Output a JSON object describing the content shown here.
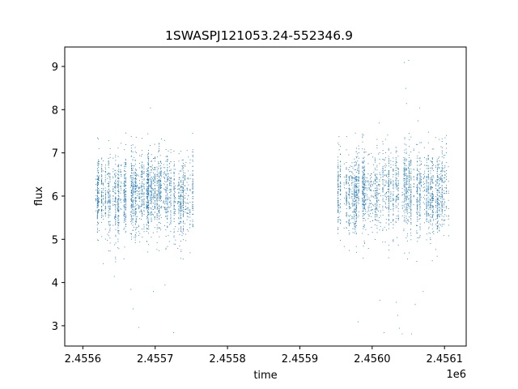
{
  "chart_data": {
    "type": "scatter",
    "title": "1SWASPJ121053.24-552346.9",
    "xlabel": "time",
    "ylabel": "flux",
    "x_offset_label": "1e6",
    "xlim": [
      2455575,
      2456130
    ],
    "ylim": [
      2.53,
      9.45
    ],
    "x_ticks": [
      2455600,
      2455700,
      2455800,
      2455900,
      2456000,
      2456100
    ],
    "x_tick_labels": [
      "2.4556",
      "2.4557",
      "2.4558",
      "2.4559",
      "2.4560",
      "2.4561"
    ],
    "y_ticks": [
      3,
      4,
      5,
      6,
      7,
      8,
      9
    ],
    "y_tick_labels": [
      "3",
      "4",
      "5",
      "6",
      "7",
      "8",
      "9"
    ],
    "grid": false,
    "legend": "none",
    "marker_color": "#1f77b4",
    "series": [
      {
        "segments": [
          {
            "x_start": 2455614,
            "x_end": 2455754,
            "center": 6.05,
            "spread": 0.75
          },
          {
            "x_start": 2455952,
            "x_end": 2456108,
            "center": 6.1,
            "spread": 0.75
          }
        ],
        "outliers": [
          {
            "x": 2455669,
            "y": 3.4
          },
          {
            "x": 2455677,
            "y": 2.97
          },
          {
            "x": 2455666,
            "y": 3.85
          },
          {
            "x": 2455697,
            "y": 3.8
          },
          {
            "x": 2455693,
            "y": 8.05
          },
          {
            "x": 2455643,
            "y": 4.15
          },
          {
            "x": 2455725,
            "y": 2.85
          },
          {
            "x": 2455713,
            "y": 3.95
          },
          {
            "x": 2456044,
            "y": 9.1
          },
          {
            "x": 2456050,
            "y": 9.15
          },
          {
            "x": 2456046,
            "y": 8.5
          },
          {
            "x": 2456047,
            "y": 8.15
          },
          {
            "x": 2456065,
            "y": 8.05
          },
          {
            "x": 2456035,
            "y": 3.25
          },
          {
            "x": 2456037,
            "y": 2.95
          },
          {
            "x": 2456033,
            "y": 3.55
          },
          {
            "x": 2456041,
            "y": 2.82
          },
          {
            "x": 2456054,
            "y": 2.82
          },
          {
            "x": 2456016,
            "y": 2.85
          },
          {
            "x": 2455980,
            "y": 3.1
          },
          {
            "x": 2456070,
            "y": 3.8
          },
          {
            "x": 2456059,
            "y": 3.5
          },
          {
            "x": 2456009,
            "y": 7.7
          },
          {
            "x": 2456063,
            "y": 7.75
          },
          {
            "x": 2456010,
            "y": 3.6
          }
        ]
      }
    ]
  }
}
